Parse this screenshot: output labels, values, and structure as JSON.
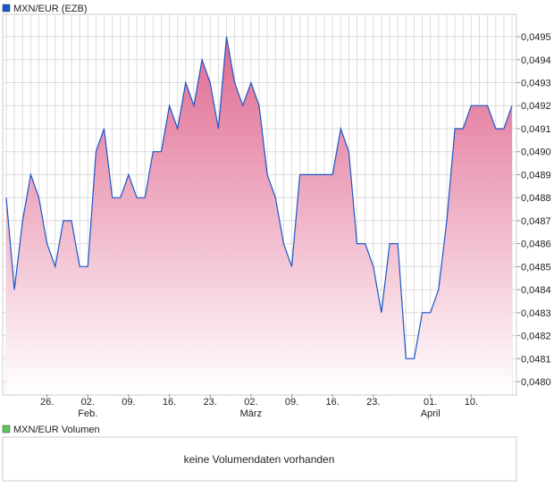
{
  "chart_data": {
    "type": "area",
    "title": "MXN/EUR (EZB)",
    "legend": "top-left",
    "series_color": "#1a56c8",
    "fill_top_color": "#e06890",
    "values": [
      0.0488,
      0.0484,
      0.0487,
      0.0489,
      0.0488,
      0.0486,
      0.0485,
      0.0487,
      0.0487,
      0.0485,
      0.0485,
      0.049,
      0.0491,
      0.0488,
      0.0488,
      0.0489,
      0.0488,
      0.0488,
      0.049,
      0.049,
      0.0492,
      0.0491,
      0.0493,
      0.0492,
      0.0494,
      0.0493,
      0.0491,
      0.0495,
      0.0493,
      0.0492,
      0.0493,
      0.0492,
      0.0489,
      0.0488,
      0.0486,
      0.0485,
      0.0489,
      0.0489,
      0.0489,
      0.0489,
      0.0489,
      0.0491,
      0.049,
      0.0486,
      0.0486,
      0.0485,
      0.0483,
      0.0486,
      0.0486,
      0.0481,
      0.0481,
      0.0483,
      0.0483,
      0.0484,
      0.0487,
      0.0491,
      0.0491,
      0.0492,
      0.0492,
      0.0492,
      0.0491,
      0.0491,
      0.0492
    ],
    "ylim": [
      0.04795,
      0.0496
    ],
    "yticks": [
      {
        "v": 0.0495,
        "label": "0,0495"
      },
      {
        "v": 0.0494,
        "label": "0,0494"
      },
      {
        "v": 0.0493,
        "label": "0,0493"
      },
      {
        "v": 0.0492,
        "label": "0,0492"
      },
      {
        "v": 0.0491,
        "label": "0,0491"
      },
      {
        "v": 0.049,
        "label": "0,0490"
      },
      {
        "v": 0.0489,
        "label": "0,0489"
      },
      {
        "v": 0.0488,
        "label": "0,0488"
      },
      {
        "v": 0.0487,
        "label": "0,0487"
      },
      {
        "v": 0.0486,
        "label": "0,0486"
      },
      {
        "v": 0.0485,
        "label": "0,0485"
      },
      {
        "v": 0.0484,
        "label": "0,0484"
      },
      {
        "v": 0.0483,
        "label": "0,0483"
      },
      {
        "v": 0.0482,
        "label": "0,0482"
      },
      {
        "v": 0.0481,
        "label": "0,0481"
      },
      {
        "v": 0.048,
        "label": "0,0480"
      }
    ],
    "xticks": [
      {
        "i": 5,
        "label": "26.",
        "sub": ""
      },
      {
        "i": 10,
        "label": "02.",
        "sub": "Feb."
      },
      {
        "i": 15,
        "label": "09.",
        "sub": ""
      },
      {
        "i": 20,
        "label": "16.",
        "sub": ""
      },
      {
        "i": 25,
        "label": "23.",
        "sub": ""
      },
      {
        "i": 30,
        "label": "02.",
        "sub": "März"
      },
      {
        "i": 35,
        "label": "09.",
        "sub": ""
      },
      {
        "i": 40,
        "label": "16.",
        "sub": ""
      },
      {
        "i": 45,
        "label": "23.",
        "sub": ""
      },
      {
        "i": 52,
        "label": "01.",
        "sub": "April"
      },
      {
        "i": 57,
        "label": "10.",
        "sub": ""
      }
    ],
    "grid": true
  },
  "volume": {
    "legend": "MXN/EUR Volumen",
    "legend_color": "#5cc85c",
    "empty_text": "keine Volumendaten vorhanden"
  }
}
